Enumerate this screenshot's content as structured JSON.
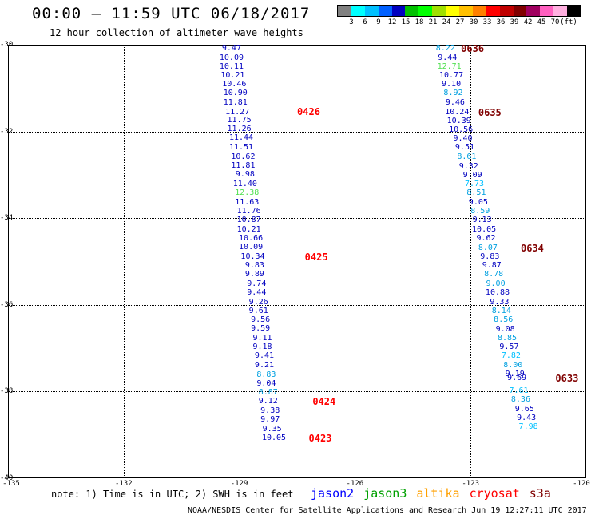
{
  "title": "00:00 – 11:59 UTC 06/18/2017",
  "subtitle": "12 hour collection of altimeter wave heights",
  "colorbar": {
    "colors": [
      "#808080",
      "#00ffff",
      "#00c0ff",
      "#0060ff",
      "#0000c0",
      "#00c000",
      "#00ff00",
      "#a0e000",
      "#ffff00",
      "#ffc000",
      "#ff8000",
      "#ff0000",
      "#c00000",
      "#800000",
      "#a00060",
      "#ff60c0",
      "#ffb0e0",
      "#000000"
    ],
    "labels": [
      "3",
      "6",
      "9",
      "12",
      "15",
      "18",
      "21",
      "24",
      "27",
      "30",
      "33",
      "36",
      "39",
      "42",
      "45",
      "70",
      "(ft)"
    ]
  },
  "chart_data": {
    "type": "scatter",
    "xlim": [
      -135,
      -120
    ],
    "ylim": [
      -40,
      -30
    ],
    "x_ticks": [
      "-135",
      "-132",
      "-129",
      "-126",
      "-123",
      "-120"
    ],
    "y_ticks": [
      "-30",
      "-32",
      "-34",
      "-36",
      "-38",
      "-40"
    ],
    "tracks": [
      {
        "points": [
          {
            "x": -129.2,
            "y": -30.1,
            "v": "9.47",
            "c": "#0000c0"
          },
          {
            "x": -129.2,
            "y": -30.31,
            "v": "10.09",
            "c": "#0000c0"
          },
          {
            "x": -129.2,
            "y": -30.51,
            "v": "10.11",
            "c": "#0000c0"
          },
          {
            "x": -129.17,
            "y": -30.71,
            "v": "10.21",
            "c": "#0000c0"
          },
          {
            "x": -129.13,
            "y": -30.92,
            "v": "10.46",
            "c": "#0000c0"
          },
          {
            "x": -129.1,
            "y": -31.13,
            "v": "10.90",
            "c": "#0000c0"
          },
          {
            "x": -129.1,
            "y": -31.34,
            "v": "11.81",
            "c": "#0000c0"
          },
          {
            "x": -129.05,
            "y": -31.56,
            "v": "11.27",
            "c": "#0000c0"
          },
          {
            "x": -129.0,
            "y": -31.75,
            "v": "11.75",
            "c": "#0000c0"
          },
          {
            "x": -129.0,
            "y": -31.95,
            "v": "11.26",
            "c": "#0000c0"
          },
          {
            "x": -128.95,
            "y": -32.16,
            "v": "11.44",
            "c": "#0000c0"
          },
          {
            "x": -128.95,
            "y": -32.38,
            "v": "11.51",
            "c": "#0000c0"
          },
          {
            "x": -128.9,
            "y": -32.6,
            "v": "10.62",
            "c": "#0000c0"
          },
          {
            "x": -128.9,
            "y": -32.8,
            "v": "11.81",
            "c": "#0000c0"
          },
          {
            "x": -128.85,
            "y": -33.0,
            "v": "9.98",
            "c": "#0000c0"
          },
          {
            "x": -128.85,
            "y": -33.22,
            "v": "11.40",
            "c": "#0000c0"
          },
          {
            "x": -128.8,
            "y": -33.43,
            "v": "12.38",
            "c": "#50e050"
          },
          {
            "x": -128.8,
            "y": -33.64,
            "v": "11.63",
            "c": "#0000c0"
          },
          {
            "x": -128.75,
            "y": -33.85,
            "v": "11.76",
            "c": "#0000c0"
          },
          {
            "x": -128.75,
            "y": -34.05,
            "v": "10.87",
            "c": "#0000c0"
          },
          {
            "x": -128.75,
            "y": -34.27,
            "v": "10.21",
            "c": "#0000c0"
          },
          {
            "x": -128.7,
            "y": -34.48,
            "v": "10.66",
            "c": "#0000c0"
          },
          {
            "x": -128.7,
            "y": -34.68,
            "v": "10.09",
            "c": "#0000c0"
          },
          {
            "x": -128.65,
            "y": -34.9,
            "v": "10.34",
            "c": "#0000c0"
          },
          {
            "x": -128.6,
            "y": -35.1,
            "v": "9.83",
            "c": "#0000c0"
          },
          {
            "x": -128.6,
            "y": -35.31,
            "v": "9.89",
            "c": "#0000c0"
          },
          {
            "x": -128.55,
            "y": -35.52,
            "v": "9.74",
            "c": "#0000c0"
          },
          {
            "x": -128.55,
            "y": -35.73,
            "v": "9.44",
            "c": "#0000c0"
          },
          {
            "x": -128.5,
            "y": -35.95,
            "v": "9.26",
            "c": "#0000c0"
          },
          {
            "x": -128.5,
            "y": -36.15,
            "v": "9.61",
            "c": "#0000c0"
          },
          {
            "x": -128.45,
            "y": -36.36,
            "v": "9.56",
            "c": "#0000c0"
          },
          {
            "x": -128.45,
            "y": -36.56,
            "v": "9.59",
            "c": "#0000c0"
          },
          {
            "x": -128.4,
            "y": -36.77,
            "v": "9.11",
            "c": "#0000c0"
          },
          {
            "x": -128.4,
            "y": -36.98,
            "v": "9.18",
            "c": "#0000c0"
          },
          {
            "x": -128.35,
            "y": -37.19,
            "v": "9.41",
            "c": "#0000c0"
          },
          {
            "x": -128.35,
            "y": -37.4,
            "v": "9.21",
            "c": "#0000c0"
          },
          {
            "x": -128.3,
            "y": -37.62,
            "v": "8.83",
            "c": "#00a0e0"
          },
          {
            "x": -128.3,
            "y": -37.82,
            "v": "9.04",
            "c": "#0000c0"
          },
          {
            "x": -128.25,
            "y": -38.03,
            "v": "8.87",
            "c": "#00a0e0"
          },
          {
            "x": -128.25,
            "y": -38.24,
            "v": "9.12",
            "c": "#0000c0"
          },
          {
            "x": -128.2,
            "y": -38.45,
            "v": "9.38",
            "c": "#0000c0"
          },
          {
            "x": -128.2,
            "y": -38.66,
            "v": "9.97",
            "c": "#0000c0"
          },
          {
            "x": -128.15,
            "y": -38.87,
            "v": "9.35",
            "c": "#0000c0"
          },
          {
            "x": -128.1,
            "y": -39.08,
            "v": "10.05",
            "c": "#0000c0"
          }
        ],
        "time_labels": [
          {
            "x": -127.2,
            "y": -31.55,
            "t": "0426",
            "c": "#ff0000"
          },
          {
            "x": -127.0,
            "y": -34.9,
            "t": "0425",
            "c": "#ff0000"
          },
          {
            "x": -126.8,
            "y": -38.24,
            "t": "0424",
            "c": "#ff0000"
          },
          {
            "x": -126.9,
            "y": -39.08,
            "t": "0423",
            "c": "#ff0000"
          }
        ]
      },
      {
        "points": [
          {
            "x": -123.65,
            "y": -30.1,
            "v": "8.22",
            "c": "#00a0e0"
          },
          {
            "x": -123.6,
            "y": -30.31,
            "v": "9.44",
            "c": "#0000c0"
          },
          {
            "x": -123.55,
            "y": -30.51,
            "v": "12.71",
            "c": "#50e050"
          },
          {
            "x": -123.5,
            "y": -30.71,
            "v": "10.77",
            "c": "#0000c0"
          },
          {
            "x": -123.5,
            "y": -30.92,
            "v": "9.10",
            "c": "#0000c0"
          },
          {
            "x": -123.45,
            "y": -31.13,
            "v": "8.92",
            "c": "#00a0e0"
          },
          {
            "x": -123.4,
            "y": -31.34,
            "v": "9.46",
            "c": "#0000c0"
          },
          {
            "x": -123.35,
            "y": -31.56,
            "v": "10.24",
            "c": "#0000c0"
          },
          {
            "x": -123.3,
            "y": -31.76,
            "v": "10.39",
            "c": "#0000c0"
          },
          {
            "x": -123.25,
            "y": -31.97,
            "v": "10.56",
            "c": "#0000c0"
          },
          {
            "x": -123.2,
            "y": -32.17,
            "v": "9.40",
            "c": "#0000c0"
          },
          {
            "x": -123.15,
            "y": -32.38,
            "v": "9.51",
            "c": "#0000c0"
          },
          {
            "x": -123.1,
            "y": -32.6,
            "v": "8.61",
            "c": "#00a0e0"
          },
          {
            "x": -123.05,
            "y": -32.81,
            "v": "9.32",
            "c": "#0000c0"
          },
          {
            "x": -122.95,
            "y": -33.02,
            "v": "9.09",
            "c": "#0000c0"
          },
          {
            "x": -122.9,
            "y": -33.22,
            "v": "7.73",
            "c": "#00c0ff"
          },
          {
            "x": -122.85,
            "y": -33.43,
            "v": "8.51",
            "c": "#00a0e0"
          },
          {
            "x": -122.8,
            "y": -33.64,
            "v": "9.05",
            "c": "#0000c0"
          },
          {
            "x": -122.75,
            "y": -33.85,
            "v": "8.59",
            "c": "#00a0e0"
          },
          {
            "x": -122.7,
            "y": -34.06,
            "v": "9.13",
            "c": "#0000c0"
          },
          {
            "x": -122.65,
            "y": -34.27,
            "v": "10.05",
            "c": "#0000c0"
          },
          {
            "x": -122.6,
            "y": -34.48,
            "v": "9.62",
            "c": "#0000c0"
          },
          {
            "x": -122.55,
            "y": -34.69,
            "v": "8.07",
            "c": "#00a0e0"
          },
          {
            "x": -122.5,
            "y": -34.9,
            "v": "9.83",
            "c": "#0000c0"
          },
          {
            "x": -122.45,
            "y": -35.11,
            "v": "9.87",
            "c": "#0000c0"
          },
          {
            "x": -122.4,
            "y": -35.31,
            "v": "8.78",
            "c": "#00a0e0"
          },
          {
            "x": -122.35,
            "y": -35.52,
            "v": "9.00",
            "c": "#00a0e0"
          },
          {
            "x": -122.3,
            "y": -35.73,
            "v": "10.88",
            "c": "#0000c0"
          },
          {
            "x": -122.25,
            "y": -35.94,
            "v": "9.33",
            "c": "#0000c0"
          },
          {
            "x": -122.2,
            "y": -36.15,
            "v": "8.14",
            "c": "#00a0e0"
          },
          {
            "x": -122.15,
            "y": -36.36,
            "v": "8.56",
            "c": "#00a0e0"
          },
          {
            "x": -122.1,
            "y": -36.57,
            "v": "9.08",
            "c": "#0000c0"
          },
          {
            "x": -122.05,
            "y": -36.77,
            "v": "8.85",
            "c": "#00a0e0"
          },
          {
            "x": -122.0,
            "y": -36.98,
            "v": "9.57",
            "c": "#0000c0"
          },
          {
            "x": -121.95,
            "y": -37.19,
            "v": "7.82",
            "c": "#00c0ff"
          },
          {
            "x": -121.9,
            "y": -37.4,
            "v": "8.00",
            "c": "#00a0e0"
          },
          {
            "x": -121.85,
            "y": -37.6,
            "v": "9.19",
            "c": "#0000c0"
          },
          {
            "x": -121.8,
            "y": -37.7,
            "v": "9.69",
            "c": "#0000c0"
          },
          {
            "x": -121.75,
            "y": -37.99,
            "v": "7.61",
            "c": "#00c0ff"
          },
          {
            "x": -121.7,
            "y": -38.2,
            "v": "8.36",
            "c": "#00a0e0"
          },
          {
            "x": -121.6,
            "y": -38.41,
            "v": "9.65",
            "c": "#0000c0"
          },
          {
            "x": -121.55,
            "y": -38.62,
            "v": "9.43",
            "c": "#0000c0"
          },
          {
            "x": -121.5,
            "y": -38.83,
            "v": "7.98",
            "c": "#00c0ff"
          }
        ],
        "time_labels": [
          {
            "x": -122.95,
            "y": -30.1,
            "t": "0636",
            "c": "#800000"
          },
          {
            "x": -122.5,
            "y": -31.57,
            "t": "0635",
            "c": "#800000"
          },
          {
            "x": -121.4,
            "y": -34.69,
            "t": "0634",
            "c": "#800000"
          },
          {
            "x": -120.5,
            "y": -37.7,
            "t": "0633",
            "c": "#800000"
          }
        ]
      }
    ]
  },
  "note": "note: 1) Time is in UTC; 2) SWH is in feet",
  "satellites": [
    {
      "name": "jason2",
      "color": "#0000ff"
    },
    {
      "name": "jason3",
      "color": "#00a000"
    },
    {
      "name": "altika",
      "color": "#ffa000"
    },
    {
      "name": "cryosat",
      "color": "#ff0000"
    },
    {
      "name": "s3a",
      "color": "#800000"
    }
  ],
  "footer": "NOAA/NESDIS Center for Satellite Applications and Research   Jun 19 12:27:11 UTC 2017"
}
